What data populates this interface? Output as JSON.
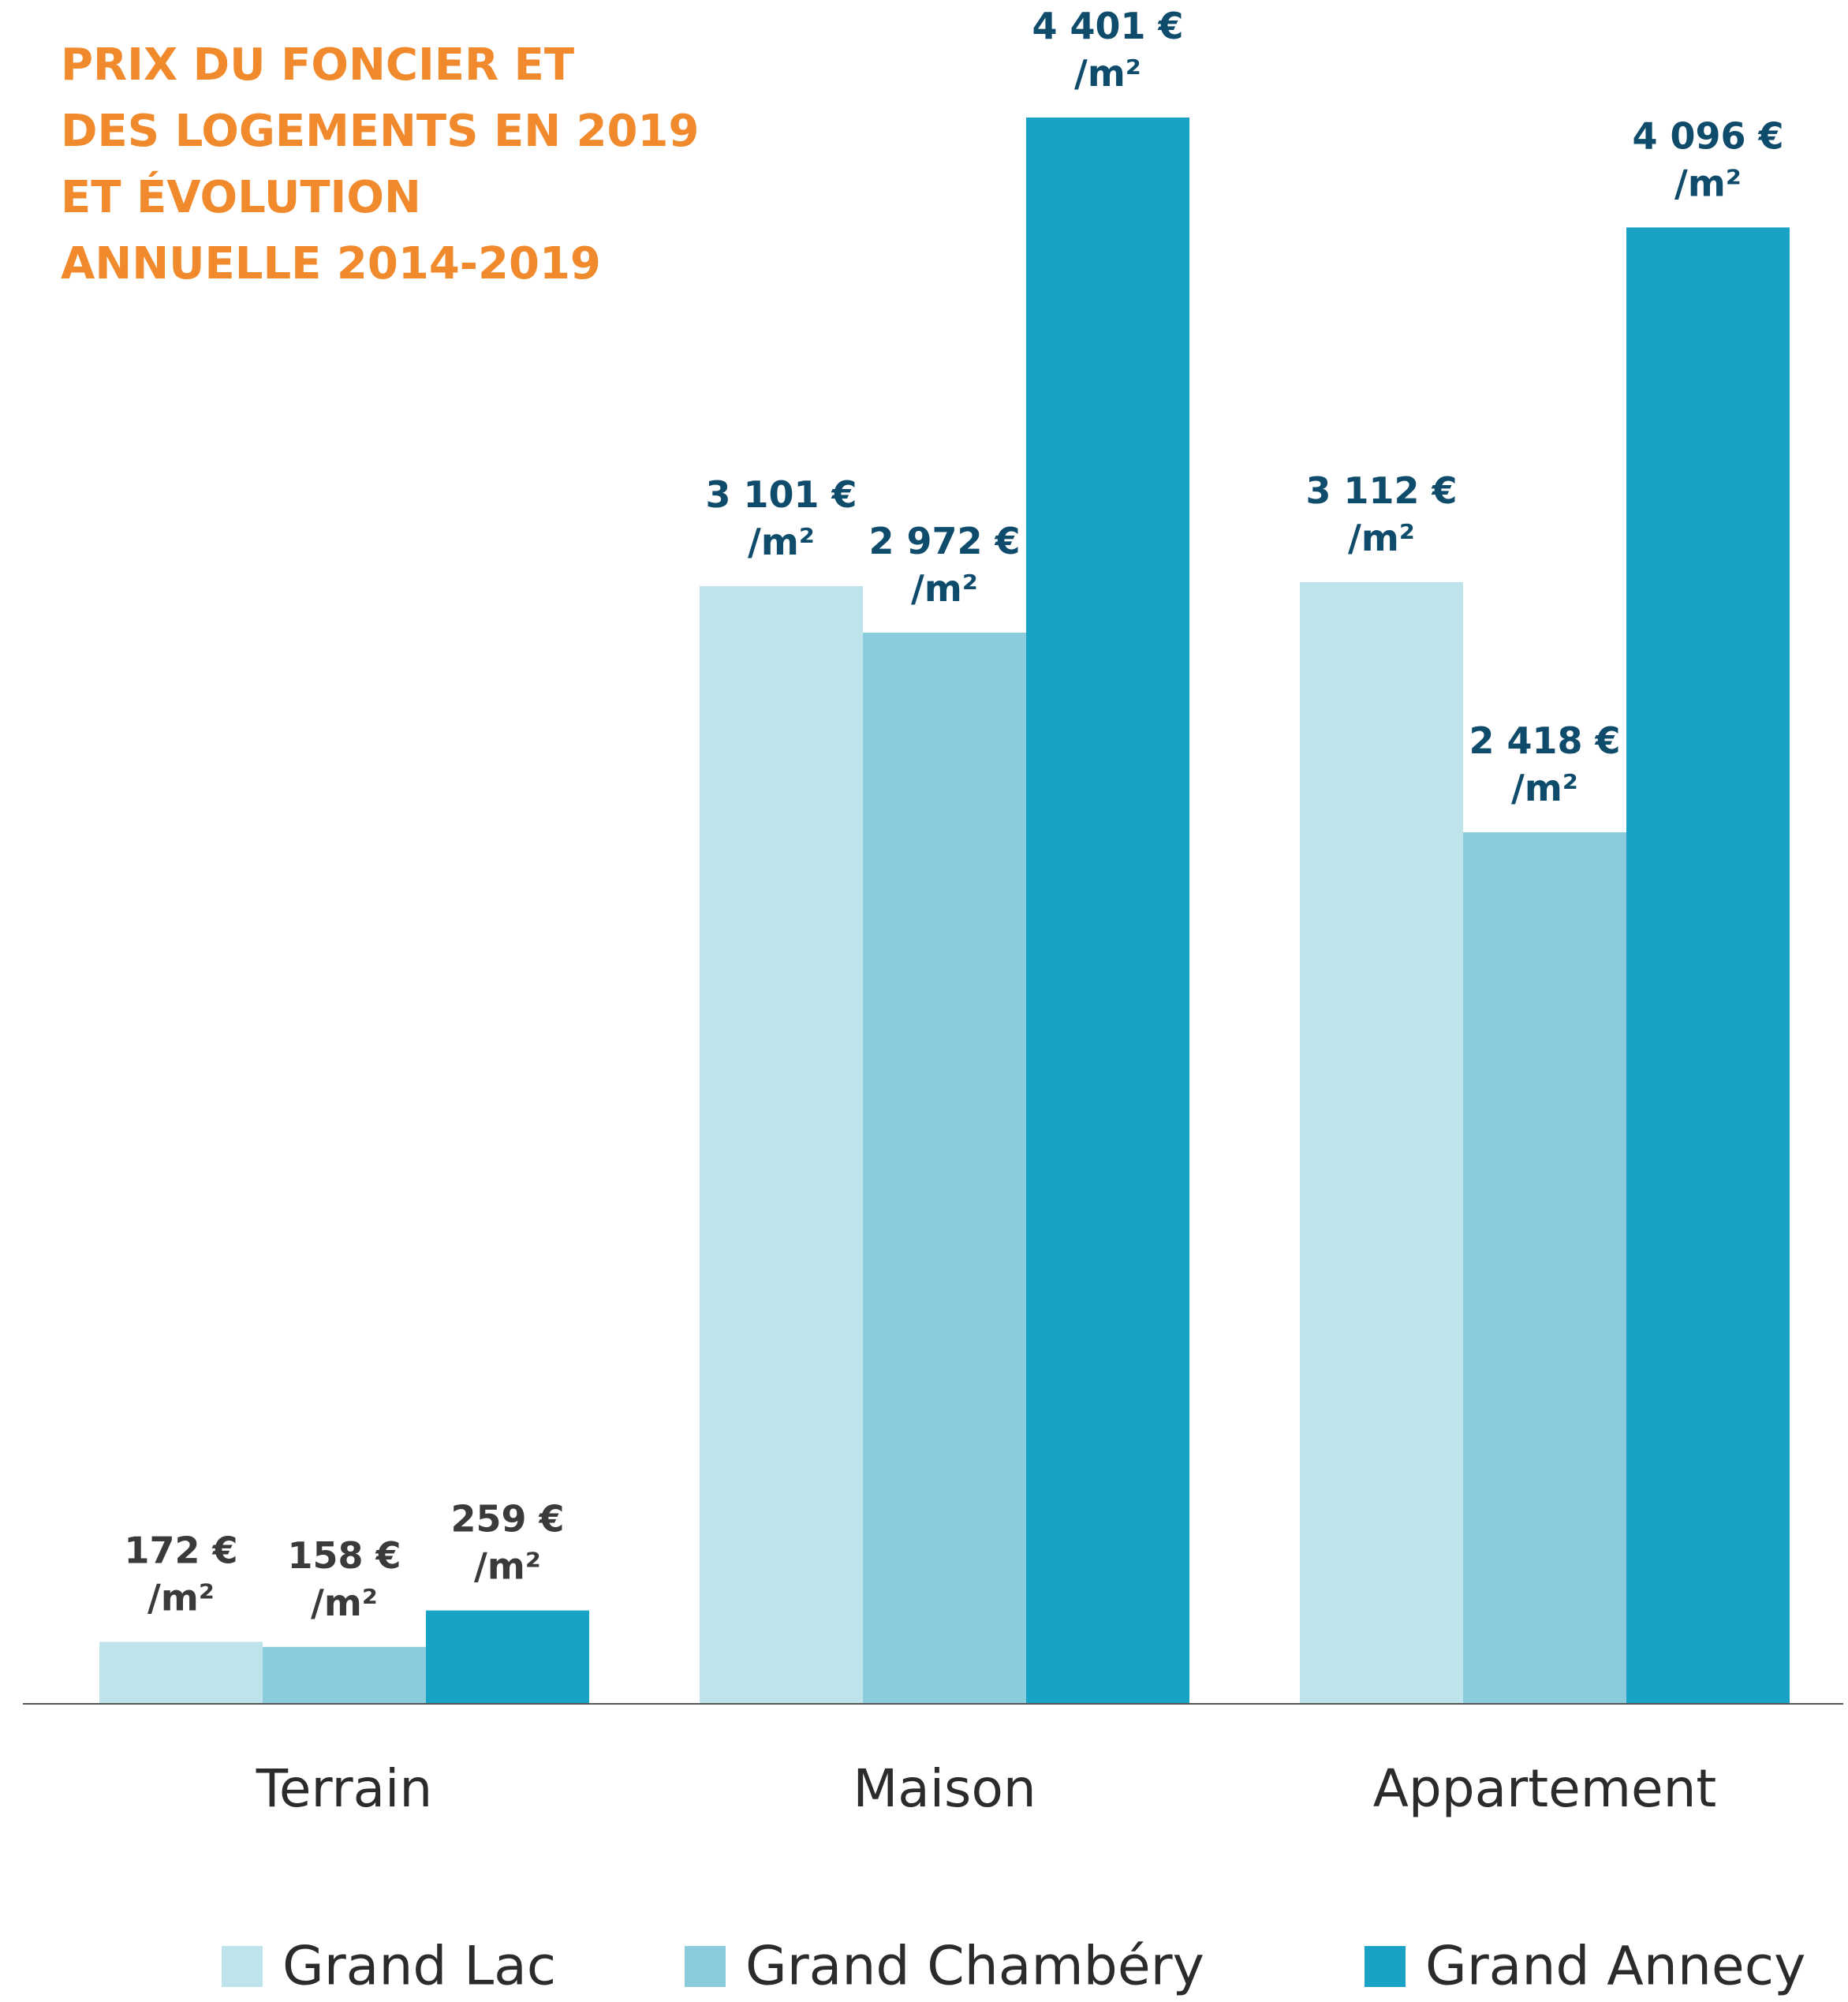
{
  "chart_data": {
    "type": "bar",
    "title_lines": [
      "PRIX DU FONCIER ET",
      "DES LOGEMENTS EN 2019",
      "ET ÉVOLUTION",
      "ANNUELLE 2014-2019"
    ],
    "categories": [
      "Terrain",
      "Maison",
      "Appartement"
    ],
    "category_label_colors": [
      "#3a3a3a",
      "#0f4c6b",
      "#0f4c6b"
    ],
    "series": [
      {
        "name": "Grand Lac",
        "color": "#bfe3ea",
        "values": [
          172,
          3101,
          3112
        ],
        "value_labels": [
          "172 € /m²",
          "3 101 € /m²",
          "3 112 € /m²"
        ]
      },
      {
        "name": "Grand Chambéry",
        "color": "#8accdb",
        "values": [
          158,
          2972,
          2418
        ],
        "value_labels": [
          "158 € /m²",
          "2 972 € /m²",
          "2 418 € /m²"
        ]
      },
      {
        "name": "Grand Annecy",
        "color": "#18a3c6",
        "values": [
          259,
          4401,
          4096
        ],
        "value_labels": [
          "259 € /m²",
          "4 401 € /m²",
          "4 096 € /m²"
        ]
      }
    ]
  }
}
